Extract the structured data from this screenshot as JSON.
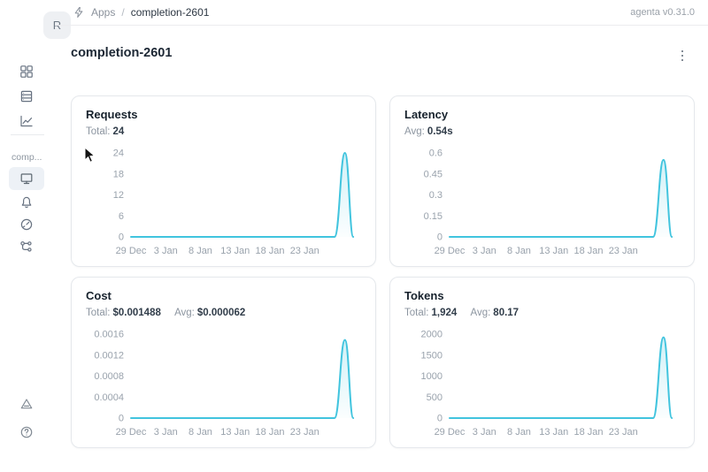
{
  "app": {
    "version_label": "agenta v0.31.0"
  },
  "header": {
    "breadcrumb": {
      "apps": "Apps",
      "separator": "/",
      "current": "completion-2601"
    }
  },
  "sidebar": {
    "workspace_initial": "R",
    "app_label_truncated": "comp...",
    "nav_top": [
      {
        "icon": "apps-grid-icon",
        "selected": false
      },
      {
        "icon": "table-icon",
        "selected": false
      },
      {
        "icon": "chart-trend-icon",
        "selected": false
      }
    ],
    "nav_app": [
      {
        "icon": "monitor-icon",
        "selected": true
      },
      {
        "icon": "bell-icon",
        "selected": false
      },
      {
        "icon": "gauge-icon",
        "selected": false
      },
      {
        "icon": "trace-tree-icon",
        "selected": false
      }
    ],
    "nav_bottom": [
      {
        "icon": "triangle-icon"
      },
      {
        "icon": "help-icon"
      }
    ]
  },
  "page": {
    "title": "completion-2601"
  },
  "cards": [
    {
      "title": "Requests",
      "stats": [
        {
          "label": "Total:",
          "value": "24"
        }
      ]
    },
    {
      "title": "Latency",
      "stats": [
        {
          "label": "Avg:",
          "value": "0.54s"
        }
      ]
    },
    {
      "title": "Cost",
      "stats": [
        {
          "label": "Total:",
          "value": "$0.001488"
        },
        {
          "label": "Avg:",
          "value": "$0.000062"
        }
      ]
    },
    {
      "title": "Tokens",
      "stats": [
        {
          "label": "Total:",
          "value": "1,924"
        },
        {
          "label": "Avg:",
          "value": "80.17"
        }
      ]
    }
  ],
  "colors": {
    "chart_line": "#41c4de",
    "axis_text": "#99a2ac",
    "selected_nav_bg": "#edf1f6"
  },
  "chart_data": [
    {
      "type": "area",
      "title": "Requests",
      "total": 24,
      "x_tick_labels": [
        "29 Dec",
        "3 Jan",
        "8 Jan",
        "13 Jan",
        "18 Jan",
        "23 Jan"
      ],
      "x_tick_days": [
        0,
        5,
        10,
        15,
        20,
        25
      ],
      "x_domain_days": 33,
      "y_tick_labels": [
        "0",
        "6",
        "12",
        "18",
        "24"
      ],
      "ylim": [
        0,
        24
      ],
      "grid": false,
      "legend": false,
      "series": [
        {
          "name": "Requests",
          "points": [
            [
              0,
              0
            ],
            [
              29.3,
              0
            ],
            [
              30.8,
              24
            ],
            [
              32,
              0
            ]
          ]
        }
      ]
    },
    {
      "type": "area",
      "title": "Latency",
      "avg": 0.54,
      "x_tick_labels": [
        "29 Dec",
        "3 Jan",
        "8 Jan",
        "13 Jan",
        "18 Jan",
        "23 Jan"
      ],
      "x_tick_days": [
        0,
        5,
        10,
        15,
        20,
        25
      ],
      "x_domain_days": 33,
      "y_tick_labels": [
        "0",
        "0.15",
        "0.3",
        "0.45",
        "0.6"
      ],
      "ylim": [
        0,
        0.6
      ],
      "grid": false,
      "legend": false,
      "series": [
        {
          "name": "Latency (s)",
          "points": [
            [
              0,
              0
            ],
            [
              29.3,
              0
            ],
            [
              30.8,
              0.55
            ],
            [
              32,
              0
            ]
          ]
        }
      ]
    },
    {
      "type": "area",
      "title": "Cost",
      "total": 0.001488,
      "avg": 6.2e-05,
      "x_tick_labels": [
        "29 Dec",
        "3 Jan",
        "8 Jan",
        "13 Jan",
        "18 Jan",
        "23 Jan"
      ],
      "x_tick_days": [
        0,
        5,
        10,
        15,
        20,
        25
      ],
      "x_domain_days": 33,
      "y_tick_labels": [
        "0",
        "0.0004",
        "0.0008",
        "0.0012",
        "0.0016"
      ],
      "ylim": [
        0,
        0.0016
      ],
      "grid": false,
      "legend": false,
      "series": [
        {
          "name": "Cost ($)",
          "points": [
            [
              0,
              0
            ],
            [
              29.3,
              0
            ],
            [
              30.8,
              0.001488
            ],
            [
              32,
              0
            ]
          ]
        }
      ]
    },
    {
      "type": "area",
      "title": "Tokens",
      "total": 1924,
      "avg": 80.17,
      "x_tick_labels": [
        "29 Dec",
        "3 Jan",
        "8 Jan",
        "13 Jan",
        "18 Jan",
        "23 Jan"
      ],
      "x_tick_days": [
        0,
        5,
        10,
        15,
        20,
        25
      ],
      "x_domain_days": 33,
      "y_tick_labels": [
        "0",
        "500",
        "1000",
        "1500",
        "2000"
      ],
      "ylim": [
        0,
        2000
      ],
      "grid": false,
      "legend": false,
      "series": [
        {
          "name": "Tokens",
          "points": [
            [
              0,
              0
            ],
            [
              29.3,
              0
            ],
            [
              30.8,
              1924
            ],
            [
              32,
              0
            ]
          ]
        }
      ]
    }
  ]
}
